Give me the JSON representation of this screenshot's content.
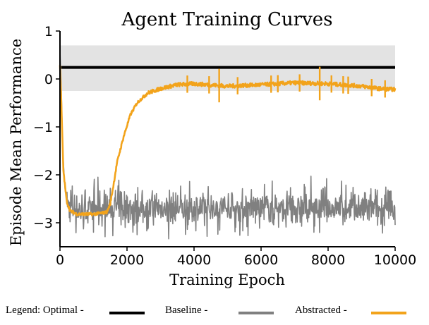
{
  "chart_data": {
    "type": "line",
    "title": "Agent Training Curves",
    "xlabel": "Training Epoch",
    "ylabel": "Episode Mean Performance",
    "xlim": [
      0,
      10000
    ],
    "ylim": [
      -3.5,
      1
    ],
    "xticks": [
      0,
      2000,
      4000,
      6000,
      8000,
      10000
    ],
    "yticks": [
      1,
      0,
      -1,
      -2,
      -3
    ],
    "grid": false,
    "band": {
      "name": "Optimal range",
      "y_low": -0.25,
      "y_high": 0.7,
      "color": "#e3e3e3"
    },
    "series": [
      {
        "name": "Optimal",
        "color": "#000000",
        "x": [
          0,
          10000
        ],
        "values": [
          0.24,
          0.24
        ]
      },
      {
        "name": "Baseline",
        "color": "#808080",
        "x": [
          0,
          40,
          80,
          150,
          250,
          400,
          700,
          1000,
          2000,
          4000,
          6000,
          8000,
          10000
        ],
        "values": [
          0.6,
          -0.2,
          -1.5,
          -2.3,
          -2.65,
          -2.7,
          -2.75,
          -2.7,
          -2.7,
          -2.72,
          -2.7,
          -2.7,
          -2.72
        ]
      },
      {
        "name": "Abstracted",
        "color": "#f2a31b",
        "x": [
          0,
          40,
          100,
          200,
          300,
          500,
          1000,
          1400,
          1500,
          1600,
          1700,
          1900,
          2100,
          2300,
          2600,
          3000,
          3500,
          4000,
          5000,
          6000,
          7000,
          8000,
          9000,
          9500,
          10000
        ],
        "values": [
          0.3,
          -0.5,
          -1.9,
          -2.55,
          -2.75,
          -2.82,
          -2.82,
          -2.78,
          -2.6,
          -2.2,
          -1.75,
          -1.2,
          -0.75,
          -0.5,
          -0.3,
          -0.2,
          -0.12,
          -0.1,
          -0.15,
          -0.12,
          -0.08,
          -0.1,
          -0.15,
          -0.2,
          -0.22
        ]
      }
    ]
  },
  "legend": {
    "prefix": "Legend: Optimal -",
    "baseline": "Baseline -",
    "abstracted": "Abstracted -",
    "optimal_color": "#000000",
    "baseline_color": "#808080",
    "abstracted_color": "#f2a31b"
  }
}
